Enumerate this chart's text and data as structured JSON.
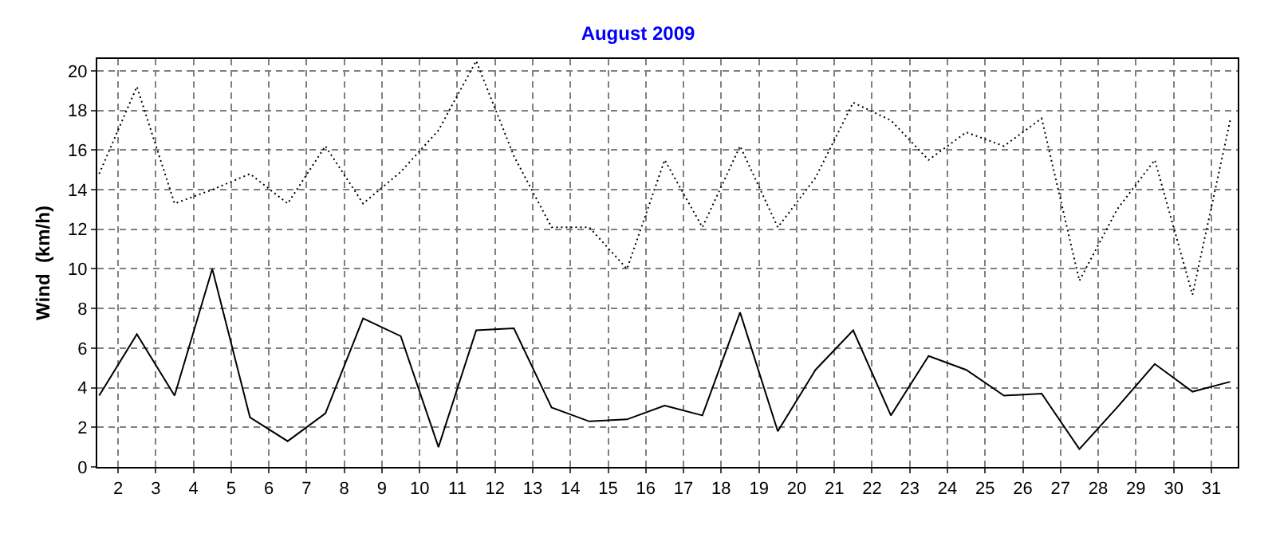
{
  "chart_data": {
    "type": "line",
    "title": "August 2009",
    "ylabel": "Wind  (km/h)",
    "x": [
      1.5,
      2.5,
      3.5,
      4.5,
      5.5,
      6.5,
      7.5,
      8.5,
      9.5,
      10.5,
      11.5,
      12.5,
      13.5,
      14.5,
      15.5,
      16.5,
      17.5,
      18.5,
      19.5,
      20.5,
      21.5,
      22.5,
      23.5,
      24.5,
      25.5,
      26.5,
      27.5,
      28.5,
      29.5,
      30.5,
      31.5
    ],
    "series": [
      {
        "color": "#000000",
        "line_style": "dotted",
        "values": [
          14.8,
          19.2,
          13.3,
          14.0,
          14.8,
          13.3,
          16.2,
          13.3,
          14.9,
          17.0,
          20.5,
          15.7,
          12.1,
          12.1,
          10.0,
          15.5,
          12.1,
          16.2,
          12.1,
          14.6,
          18.4,
          17.5,
          15.5,
          16.9,
          16.2,
          17.6,
          9.4,
          13.0,
          15.5,
          8.7,
          17.5
        ]
      },
      {
        "color": "#000000",
        "line_style": "solid",
        "values": [
          3.6,
          6.7,
          3.6,
          10.0,
          2.5,
          1.3,
          2.7,
          7.5,
          6.6,
          1.0,
          6.9,
          7.0,
          3.0,
          2.3,
          2.4,
          3.1,
          2.6,
          7.8,
          1.8,
          4.9,
          6.9,
          2.6,
          5.6,
          4.9,
          3.6,
          3.7,
          0.9,
          3.0,
          5.2,
          3.8,
          4.3
        ]
      }
    ],
    "xlim": [
      1.45,
      31.7
    ],
    "xticks": [
      2,
      3,
      4,
      5,
      6,
      7,
      8,
      9,
      10,
      11,
      12,
      13,
      14,
      15,
      16,
      17,
      18,
      19,
      20,
      21,
      22,
      23,
      24,
      25,
      26,
      27,
      28,
      29,
      30,
      31
    ],
    "ylim": [
      0,
      20.6
    ],
    "yticks": [
      0,
      2,
      4,
      6,
      8,
      10,
      12,
      14,
      16,
      18,
      20
    ],
    "grid": true,
    "marker": "none"
  }
}
